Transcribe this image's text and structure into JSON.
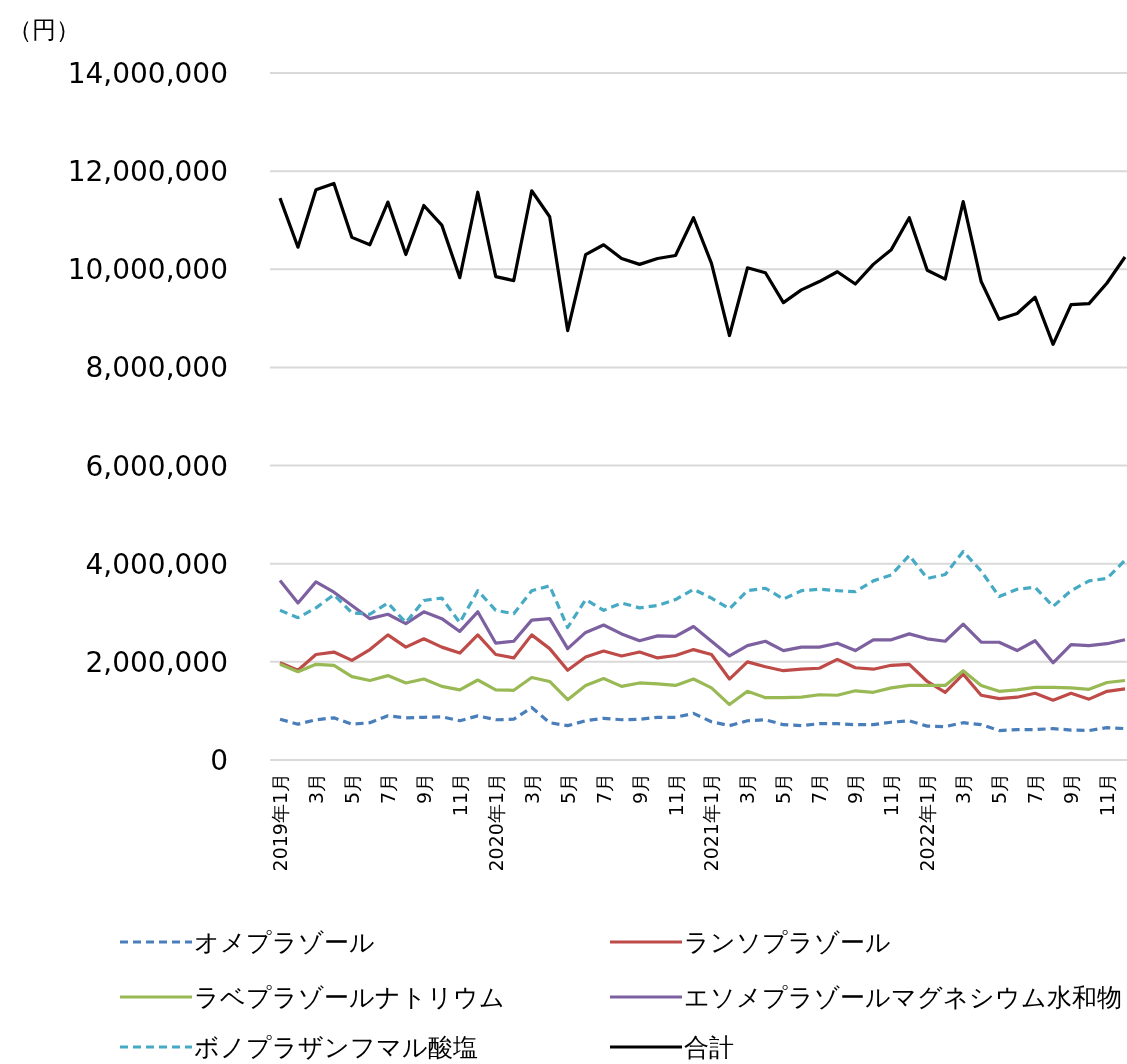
{
  "chart_data": {
    "type": "line",
    "ylabel": "（円）",
    "categories": [
      "2019年1月",
      null,
      "3月",
      null,
      "5月",
      null,
      "7月",
      null,
      "9月",
      null,
      "11月",
      null,
      "2020年1月",
      null,
      "3月",
      null,
      "5月",
      null,
      "7月",
      null,
      "9月",
      null,
      "11月",
      null,
      "2021年1月",
      null,
      "3月",
      null,
      "5月",
      null,
      "7月",
      null,
      "9月",
      null,
      "11月",
      null,
      "2022年1月",
      null,
      "3月",
      null,
      "5月",
      null,
      "7月",
      null,
      "9月",
      null,
      "11月",
      null
    ],
    "ylim": [
      0,
      14000000
    ],
    "yticks": [
      {
        "value": 0,
        "label": "0"
      },
      {
        "value": 2000000,
        "label": "2,000,000"
      },
      {
        "value": 4000000,
        "label": "4,000,000"
      },
      {
        "value": 6000000,
        "label": "6,000,000"
      },
      {
        "value": 8000000,
        "label": "8,000,000"
      },
      {
        "value": 10000000,
        "label": "10,000,000"
      },
      {
        "value": 12000000,
        "label": "12,000,000"
      },
      {
        "value": 14000000,
        "label": "14,000,000"
      }
    ],
    "grid": "y",
    "legend": "bottom",
    "marker": "none",
    "series": [
      {
        "name": "オメプラゾール",
        "color": "#4a7ebb",
        "line_style": "dashed",
        "values": [
          830000,
          730000,
          820000,
          860000,
          730000,
          760000,
          900000,
          860000,
          870000,
          880000,
          800000,
          900000,
          820000,
          830000,
          1070000,
          760000,
          700000,
          800000,
          850000,
          820000,
          830000,
          870000,
          870000,
          950000,
          780000,
          700000,
          800000,
          820000,
          720000,
          700000,
          740000,
          740000,
          720000,
          720000,
          770000,
          800000,
          690000,
          680000,
          760000,
          720000,
          600000,
          620000,
          620000,
          640000,
          610000,
          600000,
          660000,
          640000
        ]
      },
      {
        "name": "ランソプラゾール",
        "color": "#be4b48",
        "line_style": "solid",
        "values": [
          1980000,
          1830000,
          2150000,
          2200000,
          2030000,
          2250000,
          2550000,
          2300000,
          2470000,
          2300000,
          2180000,
          2550000,
          2150000,
          2080000,
          2550000,
          2270000,
          1830000,
          2100000,
          2220000,
          2120000,
          2200000,
          2080000,
          2130000,
          2250000,
          2150000,
          1650000,
          2000000,
          1900000,
          1820000,
          1850000,
          1870000,
          2050000,
          1880000,
          1850000,
          1930000,
          1950000,
          1600000,
          1380000,
          1750000,
          1320000,
          1250000,
          1280000,
          1360000,
          1220000,
          1360000,
          1240000,
          1400000,
          1450000
        ]
      },
      {
        "name": "ラベプラゾールナトリウム",
        "color": "#98b954",
        "line_style": "solid",
        "values": [
          1950000,
          1800000,
          1950000,
          1930000,
          1700000,
          1620000,
          1720000,
          1570000,
          1650000,
          1500000,
          1430000,
          1630000,
          1430000,
          1420000,
          1680000,
          1600000,
          1230000,
          1520000,
          1660000,
          1500000,
          1570000,
          1550000,
          1520000,
          1650000,
          1470000,
          1130000,
          1400000,
          1270000,
          1270000,
          1280000,
          1330000,
          1320000,
          1410000,
          1380000,
          1470000,
          1520000,
          1520000,
          1520000,
          1820000,
          1520000,
          1400000,
          1430000,
          1480000,
          1480000,
          1470000,
          1440000,
          1580000,
          1620000
        ]
      },
      {
        "name": "エソメプラゾールマグネシウム水和物",
        "color": "#7d60a0",
        "line_style": "solid",
        "values": [
          3660000,
          3200000,
          3630000,
          3420000,
          3150000,
          2880000,
          2970000,
          2780000,
          3020000,
          2880000,
          2620000,
          3020000,
          2380000,
          2420000,
          2850000,
          2880000,
          2270000,
          2600000,
          2750000,
          2570000,
          2430000,
          2530000,
          2520000,
          2720000,
          2420000,
          2120000,
          2330000,
          2420000,
          2230000,
          2300000,
          2300000,
          2380000,
          2230000,
          2450000,
          2450000,
          2570000,
          2470000,
          2420000,
          2770000,
          2400000,
          2400000,
          2230000,
          2430000,
          1980000,
          2350000,
          2330000,
          2370000,
          2450000
        ]
      },
      {
        "name": "ボノプラザンフマル酸塩",
        "color": "#46aac5",
        "line_style": "dashed",
        "values": [
          3050000,
          2900000,
          3100000,
          3370000,
          3000000,
          2970000,
          3200000,
          2800000,
          3250000,
          3300000,
          2800000,
          3450000,
          3050000,
          2980000,
          3450000,
          3550000,
          2700000,
          3270000,
          3050000,
          3200000,
          3100000,
          3150000,
          3270000,
          3480000,
          3300000,
          3080000,
          3450000,
          3500000,
          3280000,
          3450000,
          3480000,
          3450000,
          3430000,
          3650000,
          3770000,
          4170000,
          3700000,
          3780000,
          4250000,
          3850000,
          3330000,
          3480000,
          3520000,
          3130000,
          3450000,
          3650000,
          3700000,
          4070000
        ]
      },
      {
        "name": "合計",
        "color": "#000000",
        "line_style": "solid",
        "values": [
          11450000,
          10450000,
          11620000,
          11750000,
          10650000,
          10500000,
          11370000,
          10300000,
          11300000,
          10900000,
          9830000,
          11570000,
          9850000,
          9770000,
          11600000,
          11070000,
          8750000,
          10300000,
          10500000,
          10220000,
          10100000,
          10220000,
          10280000,
          11050000,
          10120000,
          8650000,
          10030000,
          9930000,
          9320000,
          9580000,
          9750000,
          9950000,
          9700000,
          10100000,
          10400000,
          11050000,
          9980000,
          9800000,
          11380000,
          9750000,
          8980000,
          9100000,
          9430000,
          8470000,
          9280000,
          9300000,
          9720000,
          10250000
        ]
      }
    ]
  }
}
